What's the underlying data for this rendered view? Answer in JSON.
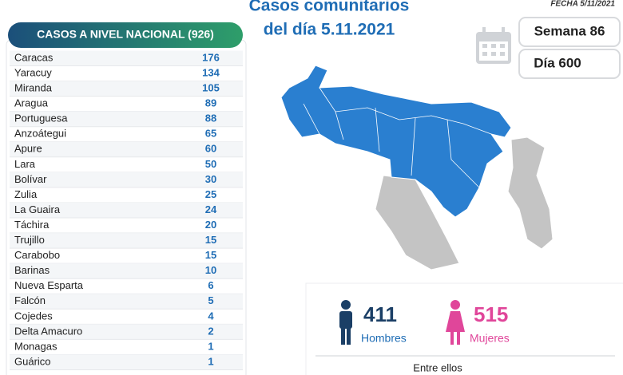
{
  "header": {
    "date": "FECHA 5/11/2021",
    "title_line1": "Casos comunitarios",
    "title_line2": "del día 5.11.2021",
    "week": "Semana 86",
    "day": "Día 600"
  },
  "table": {
    "title": "CASOS A NIVEL NACIONAL (926)",
    "rows": [
      [
        "Caracas",
        "176"
      ],
      [
        "Yaracuy",
        "134"
      ],
      [
        "Miranda",
        "105"
      ],
      [
        "Aragua",
        "89"
      ],
      [
        "Portuguesa",
        "88"
      ],
      [
        "Anzoátegui",
        "65"
      ],
      [
        "Apure",
        "60"
      ],
      [
        "Lara",
        "50"
      ],
      [
        "Bolívar",
        "30"
      ],
      [
        "Zulia",
        "25"
      ],
      [
        "La Guaira",
        "24"
      ],
      [
        "Táchira",
        "20"
      ],
      [
        "Trujillo",
        "15"
      ],
      [
        "Carabobo",
        "15"
      ],
      [
        "Barinas",
        "10"
      ],
      [
        "Nueva Esparta",
        "6"
      ],
      [
        "Falcón",
        "5"
      ],
      [
        "Cojedes",
        "4"
      ],
      [
        "Delta Amacuro",
        "2"
      ],
      [
        "Monagas",
        "1"
      ],
      [
        "Guárico",
        "1"
      ]
    ]
  },
  "stats": {
    "men_count": "411",
    "men_label": "Hombres",
    "women_count": "515",
    "women_label": "Mujeres",
    "note": "Entre ellos"
  }
}
